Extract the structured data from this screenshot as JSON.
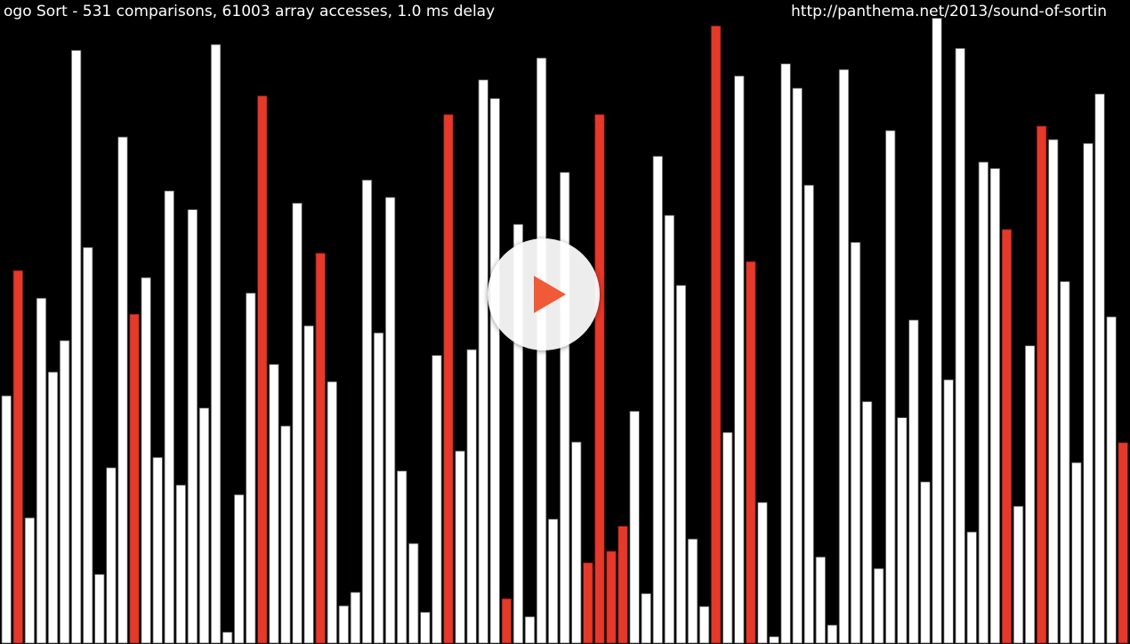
{
  "video": {
    "status_title": "ogo Sort - 531 comparisons, 61003 array accesses, 1.0 ms delay",
    "source_url": "http://panthema.net/2013/sound-of-sortin",
    "play_icon": "play-icon",
    "colors": {
      "background": "#000000",
      "bar": "#ffffff",
      "highlight": "#e5392a",
      "play": "#f05a36"
    }
  },
  "chart_data": {
    "type": "bar",
    "note_scale": "values are array element heights in percent of the canvas",
    "values": [
      38.5,
      58,
      19.5,
      53.7,
      42.2,
      47.1,
      92.3,
      61.6,
      10.7,
      27.3,
      78.8,
      51.2,
      56.9,
      28.9,
      70.4,
      24.6,
      67.5,
      36.6,
      93.2,
      1.7,
      23.1,
      54.5,
      85.2,
      43.4,
      33.8,
      68.5,
      49.4,
      60.7,
      40.7,
      5.8,
      7.9,
      72.1,
      48.3,
      69.4,
      26.8,
      15.5,
      4.8,
      44.8,
      82.3,
      29.9,
      45.7,
      87.7,
      84.8,
      6.9,
      65.2,
      4.1,
      91.1,
      19.3,
      73.3,
      31.3,
      12.5,
      82.3,
      14.3,
      18.2,
      36.1,
      7.7,
      75.8,
      66.6,
      55.7,
      16.2,
      5.7,
      96.1,
      32.8,
      88.3,
      59.4,
      21.9,
      1,
      90.2,
      86.4,
      71.3,
      13.4,
      2.8,
      89.3,
      62.4,
      37.6,
      11.6,
      79.8,
      35.1,
      50.3,
      25.1,
      97.3,
      41,
      92.6,
      17.3,
      74.9,
      73.9,
      64.4,
      21.3,
      46.3,
      80.5,
      78.4,
      56.3,
      28.1,
      77.8,
      85.5,
      50.8,
      31.2
    ],
    "highlight": [
      1,
      11,
      22,
      27,
      38,
      43,
      50,
      51,
      52,
      53,
      61,
      64,
      86,
      89,
      96,
      97
    ]
  }
}
